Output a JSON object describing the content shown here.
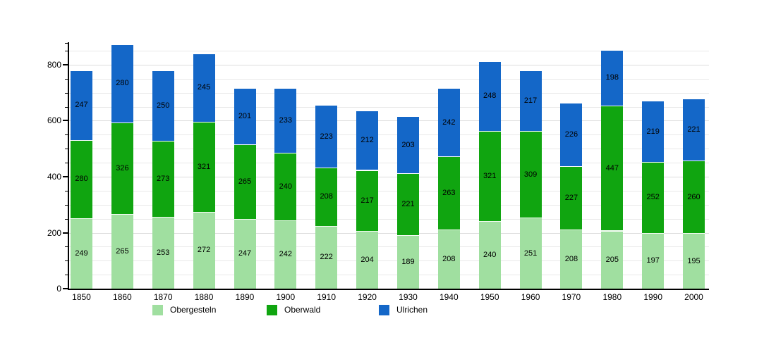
{
  "chart_data": {
    "type": "bar",
    "stacked": true,
    "title": "",
    "xlabel": "",
    "ylabel": "",
    "categories": [
      "1850",
      "1860",
      "1870",
      "1880",
      "1890",
      "1900",
      "1910",
      "1920",
      "1930",
      "1940",
      "1950",
      "1960",
      "1970",
      "1980",
      "1990",
      "2000"
    ],
    "series": [
      {
        "name": "Obergesteln",
        "color": "#a0dfa0",
        "values": [
          249,
          265,
          253,
          272,
          247,
          242,
          222,
          204,
          189,
          208,
          240,
          251,
          208,
          205,
          197,
          195
        ]
      },
      {
        "name": "Oberwald",
        "color": "#10a510",
        "values": [
          280,
          326,
          273,
          321,
          265,
          240,
          208,
          217,
          221,
          263,
          321,
          309,
          227,
          447,
          252,
          260
        ]
      },
      {
        "name": "Ulrichen",
        "color": "#1467c8",
        "values": [
          247,
          280,
          250,
          245,
          201,
          233,
          223,
          212,
          203,
          242,
          248,
          217,
          226,
          198,
          219,
          221
        ]
      }
    ],
    "ylim": [
      0,
      880
    ],
    "yticks": [
      0,
      200,
      400,
      600,
      800
    ],
    "minor_grid_step": 50,
    "grid": true,
    "legend_position": "bottom",
    "background": "#ffffff",
    "value_label_color": "#000000"
  }
}
